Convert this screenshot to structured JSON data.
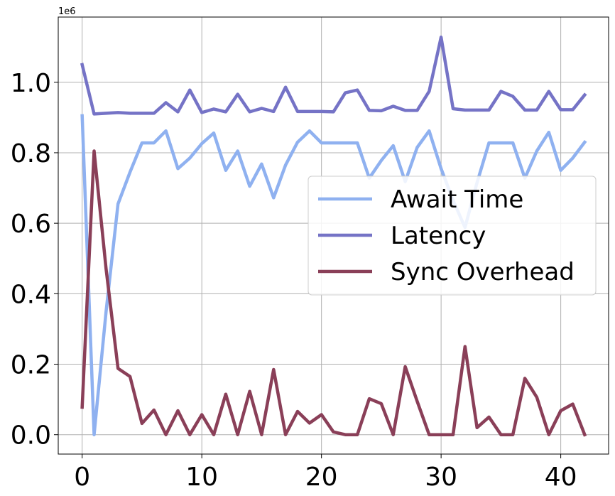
{
  "chart_data": {
    "type": "line",
    "title": "",
    "xlabel": "",
    "ylabel": "",
    "y_exponent_label": "1e6",
    "xlim": [
      -2,
      44
    ],
    "ylim": [
      -55000,
      1185000
    ],
    "xticks": [
      0,
      10,
      20,
      30,
      40
    ],
    "yticks": [
      0,
      200000,
      400000,
      600000,
      800000,
      1000000
    ],
    "ytick_labels": [
      "0.0",
      "0.2",
      "0.4",
      "0.6",
      "0.8",
      "1.0"
    ],
    "grid": true,
    "legend_position": "center-right",
    "x": [
      0,
      1,
      2,
      3,
      4,
      5,
      6,
      7,
      8,
      9,
      10,
      11,
      12,
      13,
      14,
      15,
      16,
      17,
      18,
      19,
      20,
      21,
      22,
      23,
      24,
      25,
      26,
      27,
      28,
      29,
      30,
      31,
      32,
      33,
      34,
      35,
      36,
      37,
      38,
      39,
      40,
      41,
      42
    ],
    "series": [
      {
        "name": "Await Time",
        "color": "#8fb1f0",
        "values": [
          905000,
          0,
          350000,
          655000,
          745000,
          828000,
          828000,
          862000,
          755000,
          785000,
          826000,
          856000,
          750000,
          805000,
          705000,
          768000,
          672000,
          765000,
          830000,
          862000,
          828000,
          828000,
          828000,
          828000,
          728000,
          778000,
          820000,
          718000,
          815000,
          862000,
          755000,
          665000,
          588000,
          715000,
          828000,
          828000,
          828000,
          728000,
          805000,
          858000,
          750000,
          785000,
          830000
        ]
      },
      {
        "name": "Latency",
        "color": "#7573c6",
        "values": [
          1050000,
          910000,
          912000,
          914000,
          912000,
          912000,
          912000,
          942000,
          916000,
          978000,
          914000,
          924000,
          916000,
          966000,
          916000,
          926000,
          917000,
          986000,
          917000,
          917000,
          917000,
          916000,
          970000,
          978000,
          920000,
          919000,
          932000,
          920000,
          920000,
          974000,
          1128000,
          925000,
          921000,
          921000,
          921000,
          974000,
          960000,
          921000,
          921000,
          974000,
          922000,
          922000,
          964000
        ]
      },
      {
        "name": "Sync Overhead",
        "color": "#8a3f58",
        "values": [
          78000,
          805000,
          470000,
          188000,
          165000,
          32000,
          70000,
          0,
          68000,
          0,
          57000,
          0,
          115000,
          0,
          123000,
          0,
          185000,
          0,
          66000,
          33000,
          57000,
          8000,
          0,
          0,
          102000,
          88000,
          0,
          193000,
          95000,
          0,
          0,
          0,
          250000,
          20000,
          50000,
          0,
          0,
          160000,
          106000,
          0,
          68000,
          87000,
          0
        ]
      }
    ]
  }
}
